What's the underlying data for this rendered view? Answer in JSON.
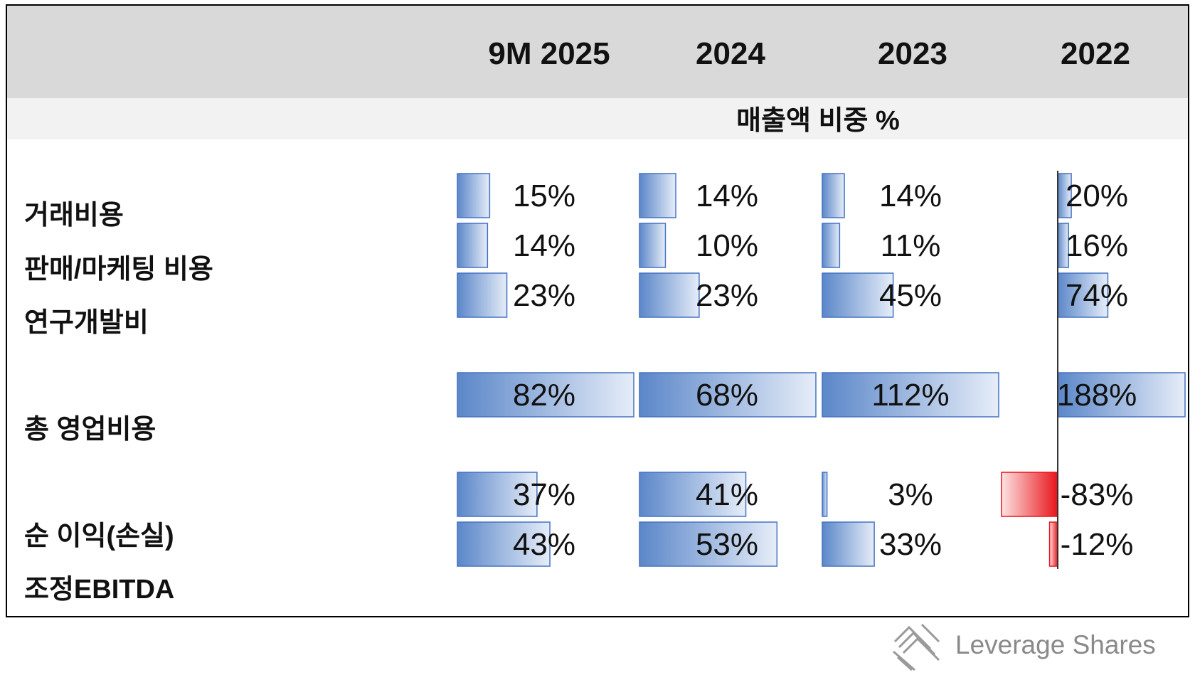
{
  "columns": [
    "9M 2025",
    "2024",
    "2023",
    "2022"
  ],
  "subheader": "매출액 비중 %",
  "rows": [
    "거래비용",
    "판매/마케팅 비용",
    "연구개발비",
    "총 영업비용",
    "순 이익(손실)",
    "조정EBITDA"
  ],
  "chart_data": {
    "type": "table",
    "title": "",
    "unit": "%",
    "series": [
      {
        "name": "9M 2025",
        "values": [
          15,
          14,
          23,
          82,
          37,
          43
        ]
      },
      {
        "name": "2024",
        "values": [
          14,
          10,
          23,
          68,
          41,
          53
        ]
      },
      {
        "name": "2023",
        "values": [
          14,
          11,
          45,
          112,
          3,
          33
        ]
      },
      {
        "name": "2022",
        "values": [
          20,
          16,
          74,
          188,
          -83,
          -12
        ]
      }
    ],
    "colors": {
      "positive": "#5b87c9",
      "negative": "#e8141a",
      "border": "#4472c4"
    }
  },
  "logo": {
    "text": "Leverage Shares",
    "icon": "leverage-shares-logo-icon"
  }
}
